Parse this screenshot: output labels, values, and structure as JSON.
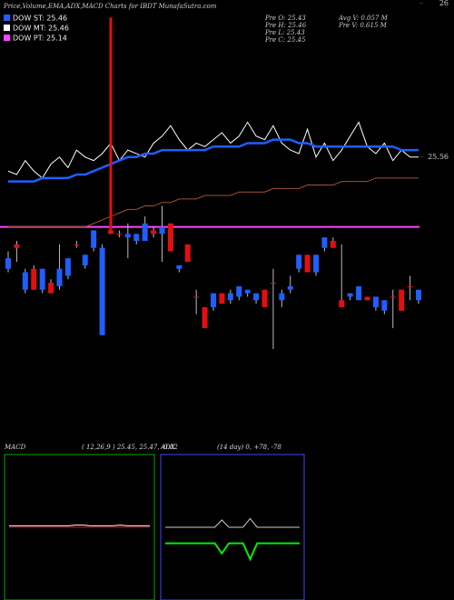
{
  "chart_data": [
    {
      "type": "candlestick",
      "title": "Price,Volume,EMA,ADX,MACD Charts for IBDT MunafaSutra.com",
      "info": [
        "Pre  O: 25.43",
        "Pre  H: 25.46",
        "Pre  L: 25.43",
        "Pre  C: 25.45",
        "Avg V: 0.057 M",
        "Pre   V: 0.615 M"
      ],
      "legend": [
        {
          "label": "DOW ST: 25.46",
          "color": "#1f5fff"
        },
        {
          "label": "DOW MT: 25.46",
          "color": "#ffffff"
        },
        {
          "label": "DOW PT: 25.14",
          "color": "#ff44ff"
        }
      ],
      "ylim": [
        24.76,
        26.01
      ],
      "yticks": [
        26,
        25.56
      ],
      "up_color": "#1f5fff",
      "down_color": "#e01010",
      "open": [
        25.24,
        25.31,
        25.18,
        25.24,
        25.18,
        25.2,
        25.19,
        25.22,
        25.31,
        25.25,
        25.3,
        25.05,
        25.35,
        25.34,
        25.33,
        25.32,
        25.32,
        25.35,
        25.34,
        25.37,
        25.24,
        25.31,
        25.16,
        25.13,
        25.13,
        25.17,
        25.15,
        25.16,
        25.17,
        25.15,
        25.18,
        25.2,
        25.15,
        25.18,
        25.24,
        25.28,
        25.23,
        25.3,
        25.32,
        25.15,
        25.16,
        25.15,
        25.16,
        25.13,
        25.12,
        25.16,
        25.18,
        25.19,
        25.15
      ],
      "high": [
        25.29,
        25.32,
        25.24,
        25.25,
        25.24,
        25.21,
        25.31,
        25.27,
        25.32,
        25.28,
        25.35,
        25.31,
        25.96,
        25.35,
        25.37,
        25.34,
        25.39,
        25.36,
        25.42,
        25.37,
        25.25,
        25.31,
        25.18,
        25.13,
        25.17,
        25.17,
        25.18,
        25.19,
        25.18,
        25.17,
        25.18,
        25.24,
        25.18,
        25.22,
        25.28,
        25.28,
        25.28,
        25.33,
        25.33,
        25.31,
        25.17,
        25.19,
        25.16,
        25.16,
        25.15,
        25.18,
        25.18,
        25.22,
        25.18
      ],
      "low": [
        25.23,
        25.26,
        25.17,
        25.18,
        25.17,
        25.17,
        25.18,
        25.21,
        25.3,
        25.24,
        25.29,
        25.05,
        25.34,
        25.33,
        25.27,
        25.31,
        25.32,
        25.33,
        25.26,
        25.29,
        25.23,
        25.26,
        25.11,
        25.07,
        25.12,
        25.14,
        25.14,
        25.15,
        25.16,
        25.14,
        25.13,
        25.01,
        25.13,
        25.17,
        25.23,
        25.23,
        25.22,
        25.29,
        25.3,
        25.13,
        25.15,
        25.15,
        25.15,
        25.12,
        25.11,
        25.07,
        25.12,
        25.15,
        25.14
      ],
      "close": [
        25.27,
        25.3,
        25.23,
        25.18,
        25.24,
        25.17,
        25.24,
        25.27,
        25.31,
        25.28,
        25.35,
        25.3,
        25.34,
        25.34,
        25.34,
        25.34,
        25.37,
        25.34,
        25.36,
        25.29,
        25.25,
        25.26,
        25.16,
        25.07,
        25.17,
        25.14,
        25.17,
        25.19,
        25.18,
        25.17,
        25.13,
        25.2,
        25.17,
        25.19,
        25.28,
        25.23,
        25.28,
        25.33,
        25.3,
        25.13,
        25.17,
        25.19,
        25.15,
        25.16,
        25.15,
        25.16,
        25.12,
        25.19,
        25.18
      ],
      "lines": [
        {
          "color": "#ffffff",
          "values": [
            25.52,
            25.51,
            25.55,
            25.52,
            25.5,
            25.54,
            25.56,
            25.53,
            25.58,
            25.56,
            25.55,
            25.57,
            25.6,
            25.55,
            25.58,
            25.57,
            25.56,
            25.6,
            25.62,
            25.65,
            25.61,
            25.58,
            25.6,
            25.59,
            25.61,
            25.63,
            25.6,
            25.62,
            25.66,
            25.62,
            25.61,
            25.65,
            25.6,
            25.58,
            25.57,
            25.64,
            25.56,
            25.6,
            25.55,
            25.58,
            25.62,
            25.66,
            25.59,
            25.57,
            25.6,
            25.55,
            25.58,
            25.56,
            25.56
          ]
        },
        {
          "color": "#1f5fff",
          "values": [
            25.49,
            25.49,
            25.49,
            25.49,
            25.5,
            25.5,
            25.5,
            25.5,
            25.51,
            25.51,
            25.52,
            25.53,
            25.54,
            25.55,
            25.56,
            25.56,
            25.57,
            25.57,
            25.58,
            25.58,
            25.58,
            25.58,
            25.58,
            25.58,
            25.59,
            25.59,
            25.59,
            25.59,
            25.6,
            25.6,
            25.6,
            25.61,
            25.61,
            25.61,
            25.6,
            25.6,
            25.59,
            25.59,
            25.59,
            25.59,
            25.59,
            25.59,
            25.59,
            25.59,
            25.59,
            25.59,
            25.58,
            25.58,
            25.58
          ]
        },
        {
          "color": "#a0522d",
          "values": [
            25.36,
            25.36,
            25.36,
            25.36,
            25.36,
            25.36,
            25.36,
            25.36,
            25.36,
            25.36,
            25.37,
            25.38,
            25.39,
            25.4,
            25.41,
            25.41,
            25.42,
            25.42,
            25.43,
            25.43,
            25.44,
            25.44,
            25.44,
            25.45,
            25.45,
            25.45,
            25.45,
            25.46,
            25.46,
            25.46,
            25.46,
            25.47,
            25.47,
            25.47,
            25.47,
            25.48,
            25.48,
            25.48,
            25.48,
            25.49,
            25.49,
            25.49,
            25.49,
            25.5,
            25.5,
            25.5,
            25.5,
            25.5,
            25.5
          ]
        }
      ],
      "level": 25.36,
      "level_color": "#ff44ff"
    },
    {
      "type": "line",
      "title": "MACD",
      "subtitle": "( 12,26,9 ) 25.45, 25.47, -0.02",
      "ylim": [
        -1,
        1
      ],
      "border": "#00aa00",
      "series": [
        {
          "color": "#ffffff",
          "values": [
            0.02,
            0.02,
            0.02,
            0.02,
            0.02,
            0.02,
            0.02,
            0.02,
            0.02,
            0.03,
            0.03,
            0.02,
            0.02,
            0.02,
            0.02,
            0.03,
            0.02,
            0.02,
            0.02,
            0.02
          ]
        },
        {
          "color": "#e01010",
          "values": [
            0.0,
            0.0,
            0.0,
            0.0,
            0.0,
            0.0,
            0.0,
            0.0,
            0.0,
            0.0,
            0.0,
            0.0,
            0.0,
            0.0,
            0.0,
            0.0,
            0.0,
            0.0,
            0.0,
            0.0
          ]
        }
      ]
    },
    {
      "type": "line",
      "title": "ADX",
      "subtitle": "(14 day) 0, +78, -78",
      "ylim": [
        0,
        100
      ],
      "border": "#4444ff",
      "series": [
        {
          "color": "#cccccc",
          "values": [
            50,
            50,
            50,
            50,
            50,
            50,
            50,
            50,
            55,
            50,
            50,
            50,
            56,
            50,
            50,
            50,
            50,
            50,
            50,
            50
          ]
        },
        {
          "color": "#00ee00",
          "values": [
            39,
            39,
            39,
            39,
            39,
            39,
            39,
            39,
            32,
            39,
            39,
            39,
            28,
            39,
            39,
            39,
            39,
            39,
            39,
            39
          ]
        }
      ]
    }
  ]
}
